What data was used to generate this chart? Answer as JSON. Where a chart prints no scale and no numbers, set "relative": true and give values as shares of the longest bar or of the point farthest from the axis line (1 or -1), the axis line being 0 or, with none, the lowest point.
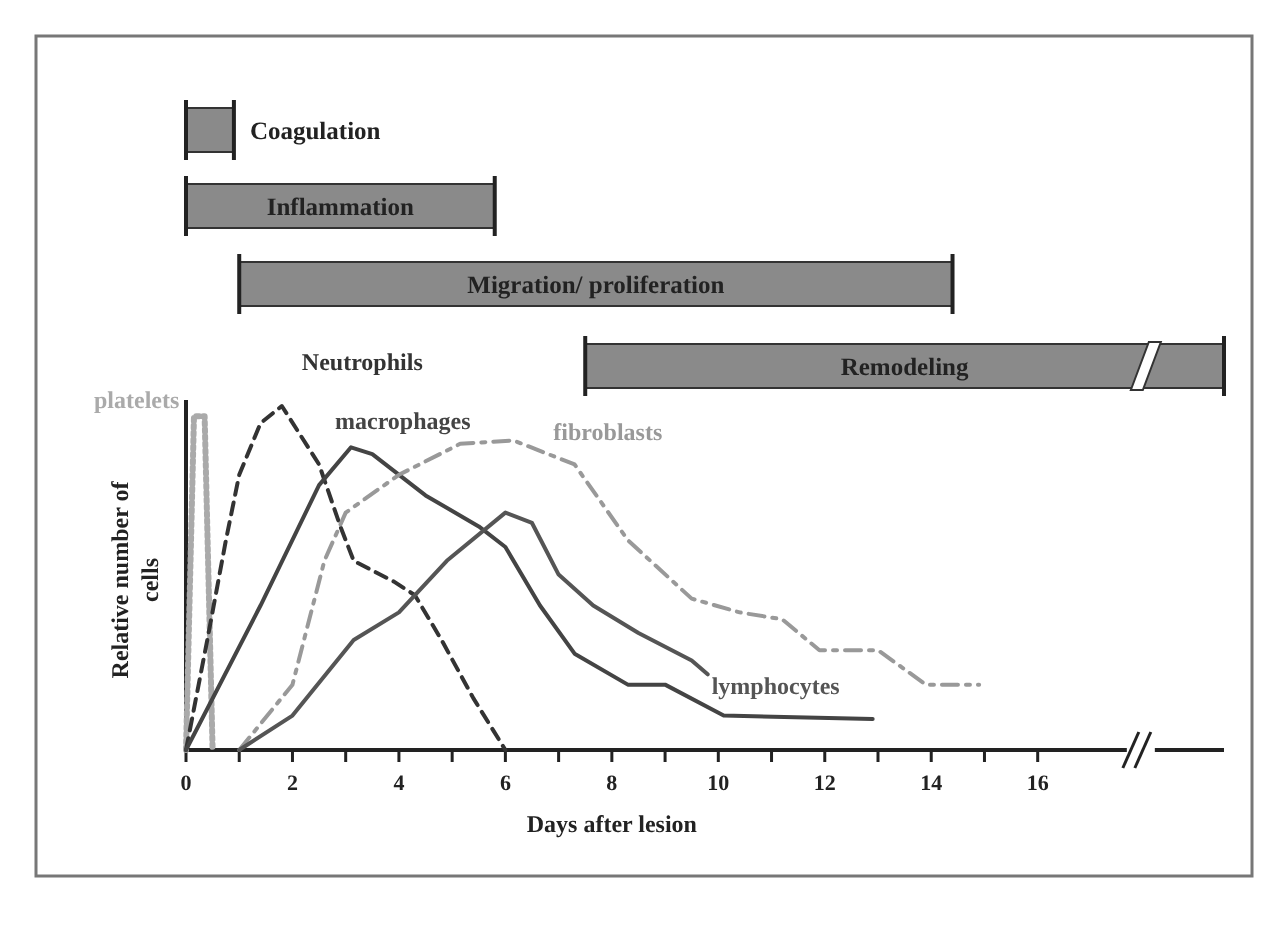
{
  "chart_data": [
    {
      "type": "bar",
      "orientation": "horizontal",
      "categories": [
        "Coagulation",
        "Inflammation",
        "Migration/ proliferation",
        "Remodeling"
      ],
      "base": [
        0,
        0,
        1,
        7.5
      ],
      "values": [
        0.9,
        5.8,
        13.4,
        12
      ],
      "color": "#8a8a8a",
      "xlim": [
        0,
        19.5
      ]
    },
    {
      "type": "line",
      "relative": true,
      "xlabel": "Days after lesion",
      "ylabel": "Relative number of cells",
      "xlim": [
        0,
        19.5
      ],
      "xticks": [
        0,
        {
          "value": 1,
          "label": null
        },
        2,
        {
          "value": 3,
          "label": null
        },
        4,
        {
          "value": 5,
          "label": null
        },
        6,
        {
          "value": 7,
          "label": null
        },
        8,
        {
          "value": 9,
          "label": null
        },
        10,
        {
          "value": 11,
          "label": null
        },
        12,
        {
          "value": 13,
          "label": null
        },
        14,
        {
          "value": 15,
          "label": null
        },
        16
      ],
      "marker": "none",
      "series": [
        {
          "name": "platelets",
          "color": "#aaaaaa",
          "line_style": "dotted",
          "x": [
            0,
            0.15,
            0.35,
            0.5
          ],
          "values": [
            0,
            0.97,
            0.97,
            0
          ]
        },
        {
          "name": "Neutrophils",
          "color": "#333333",
          "line_style": "dashed",
          "x": [
            0,
            0.4,
            0.75,
            1,
            1.4,
            1.8,
            2.5,
            2.9,
            3.15,
            3.9,
            4.3,
            4.8,
            5.4,
            6
          ],
          "values": [
            0,
            0.32,
            0.61,
            0.8,
            0.95,
            1,
            0.83,
            0.65,
            0.55,
            0.49,
            0.45,
            0.32,
            0.15,
            0
          ]
        },
        {
          "name": "macrophages",
          "color": "#444444",
          "line_style": "solid",
          "x": [
            0,
            1.4,
            2.5,
            3.1,
            3.5,
            4.5,
            5.5,
            6,
            6.65,
            7.3,
            8.3,
            9,
            10.1,
            12.9
          ],
          "values": [
            0,
            0.42,
            0.77,
            0.88,
            0.86,
            0.74,
            0.65,
            0.59,
            0.42,
            0.28,
            0.19,
            0.19,
            0.1,
            0.09
          ]
        },
        {
          "name": "fibroblasts",
          "color": "#999999",
          "line_style": "dashdot",
          "x": [
            1,
            2,
            2.6,
            3,
            4,
            5.15,
            6.15,
            7.3,
            8.3,
            9.5,
            10.4,
            11.2,
            11.9,
            13,
            13.9,
            14.9
          ],
          "values": [
            0,
            0.19,
            0.55,
            0.69,
            0.8,
            0.89,
            0.9,
            0.83,
            0.61,
            0.44,
            0.4,
            0.38,
            0.29,
            0.29,
            0.19,
            0.19
          ]
        },
        {
          "name": "lymphocytes",
          "color": "#555555",
          "line_style": "solid",
          "x": [
            1,
            2,
            3.15,
            4,
            4.9,
            6,
            6.5,
            7,
            7.65,
            8.5,
            9.5,
            9.8
          ],
          "values": [
            0,
            0.1,
            0.32,
            0.4,
            0.55,
            0.69,
            0.66,
            0.51,
            0.42,
            0.34,
            0.26,
            0.22
          ]
        }
      ]
    }
  ]
}
